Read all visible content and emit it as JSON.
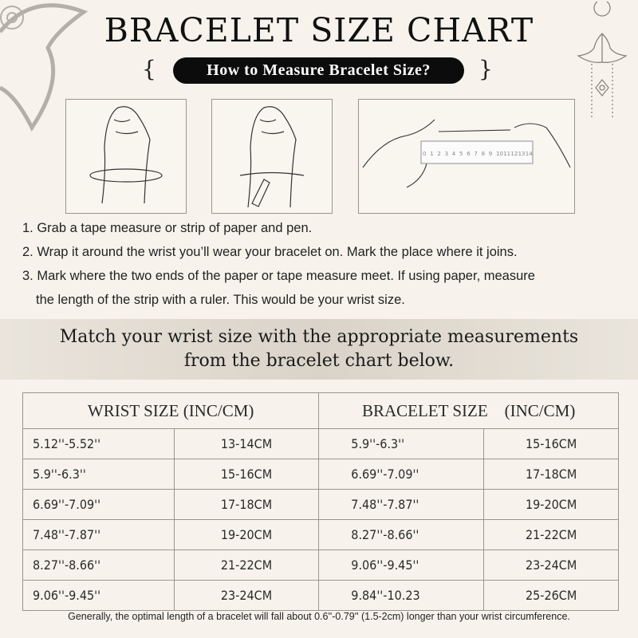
{
  "title": "BRACELET SIZE CHART",
  "subtitle": "How to Measure Bracelet Size?",
  "illustrations": {
    "ruler_labels": [
      "0",
      "1",
      "2",
      "3",
      "4",
      "5",
      "6",
      "7",
      "8",
      "9",
      "10",
      "11",
      "12",
      "13",
      "14"
    ]
  },
  "steps": [
    "1. Grab a tape measure or strip of paper and pen.",
    "2. Wrap it around the wrist you’ll wear your bracelet on. Mark the place where it joins.",
    "3. Mark where the two ends of the paper or tape measure meet. If using paper, measure",
    "the length of the strip with a ruler. This would be your wrist size."
  ],
  "band": {
    "line1": "Match your wrist size with the appropriate measurements",
    "line2": "from the bracelet chart below."
  },
  "table": {
    "headers": [
      "WRIST SIZE (INC/CM)",
      "BRACELET SIZE    (INC/CM)"
    ],
    "rows": [
      [
        "5.12''-5.52''",
        "13-14CM",
        "5.9''-6.3''",
        "15-16CM"
      ],
      [
        "5.9''-6.3''",
        "15-16CM",
        "6.69''-7.09''",
        "17-18CM"
      ],
      [
        "6.69''-7.09''",
        "17-18CM",
        "7.48''-7.87''",
        "19-20CM"
      ],
      [
        "7.48''-7.87''",
        "19-20CM",
        "8.27''-8.66''",
        "21-22CM"
      ],
      [
        "8.27''-8.66''",
        "21-22CM",
        "9.06''-9.45''",
        "23-24CM"
      ],
      [
        "9.06''-9.45''",
        "23-24CM",
        "9.84''-10.23",
        "25-26CM"
      ]
    ]
  },
  "footnote": "Generally, the optimal length of a bracelet will fall about 0.6''-0.79'' (1.5-2cm) longer than your wrist circumference.",
  "colors": {
    "background": "#f7f3ec",
    "pill": "#0c0c0c",
    "border": "#9a958c"
  }
}
